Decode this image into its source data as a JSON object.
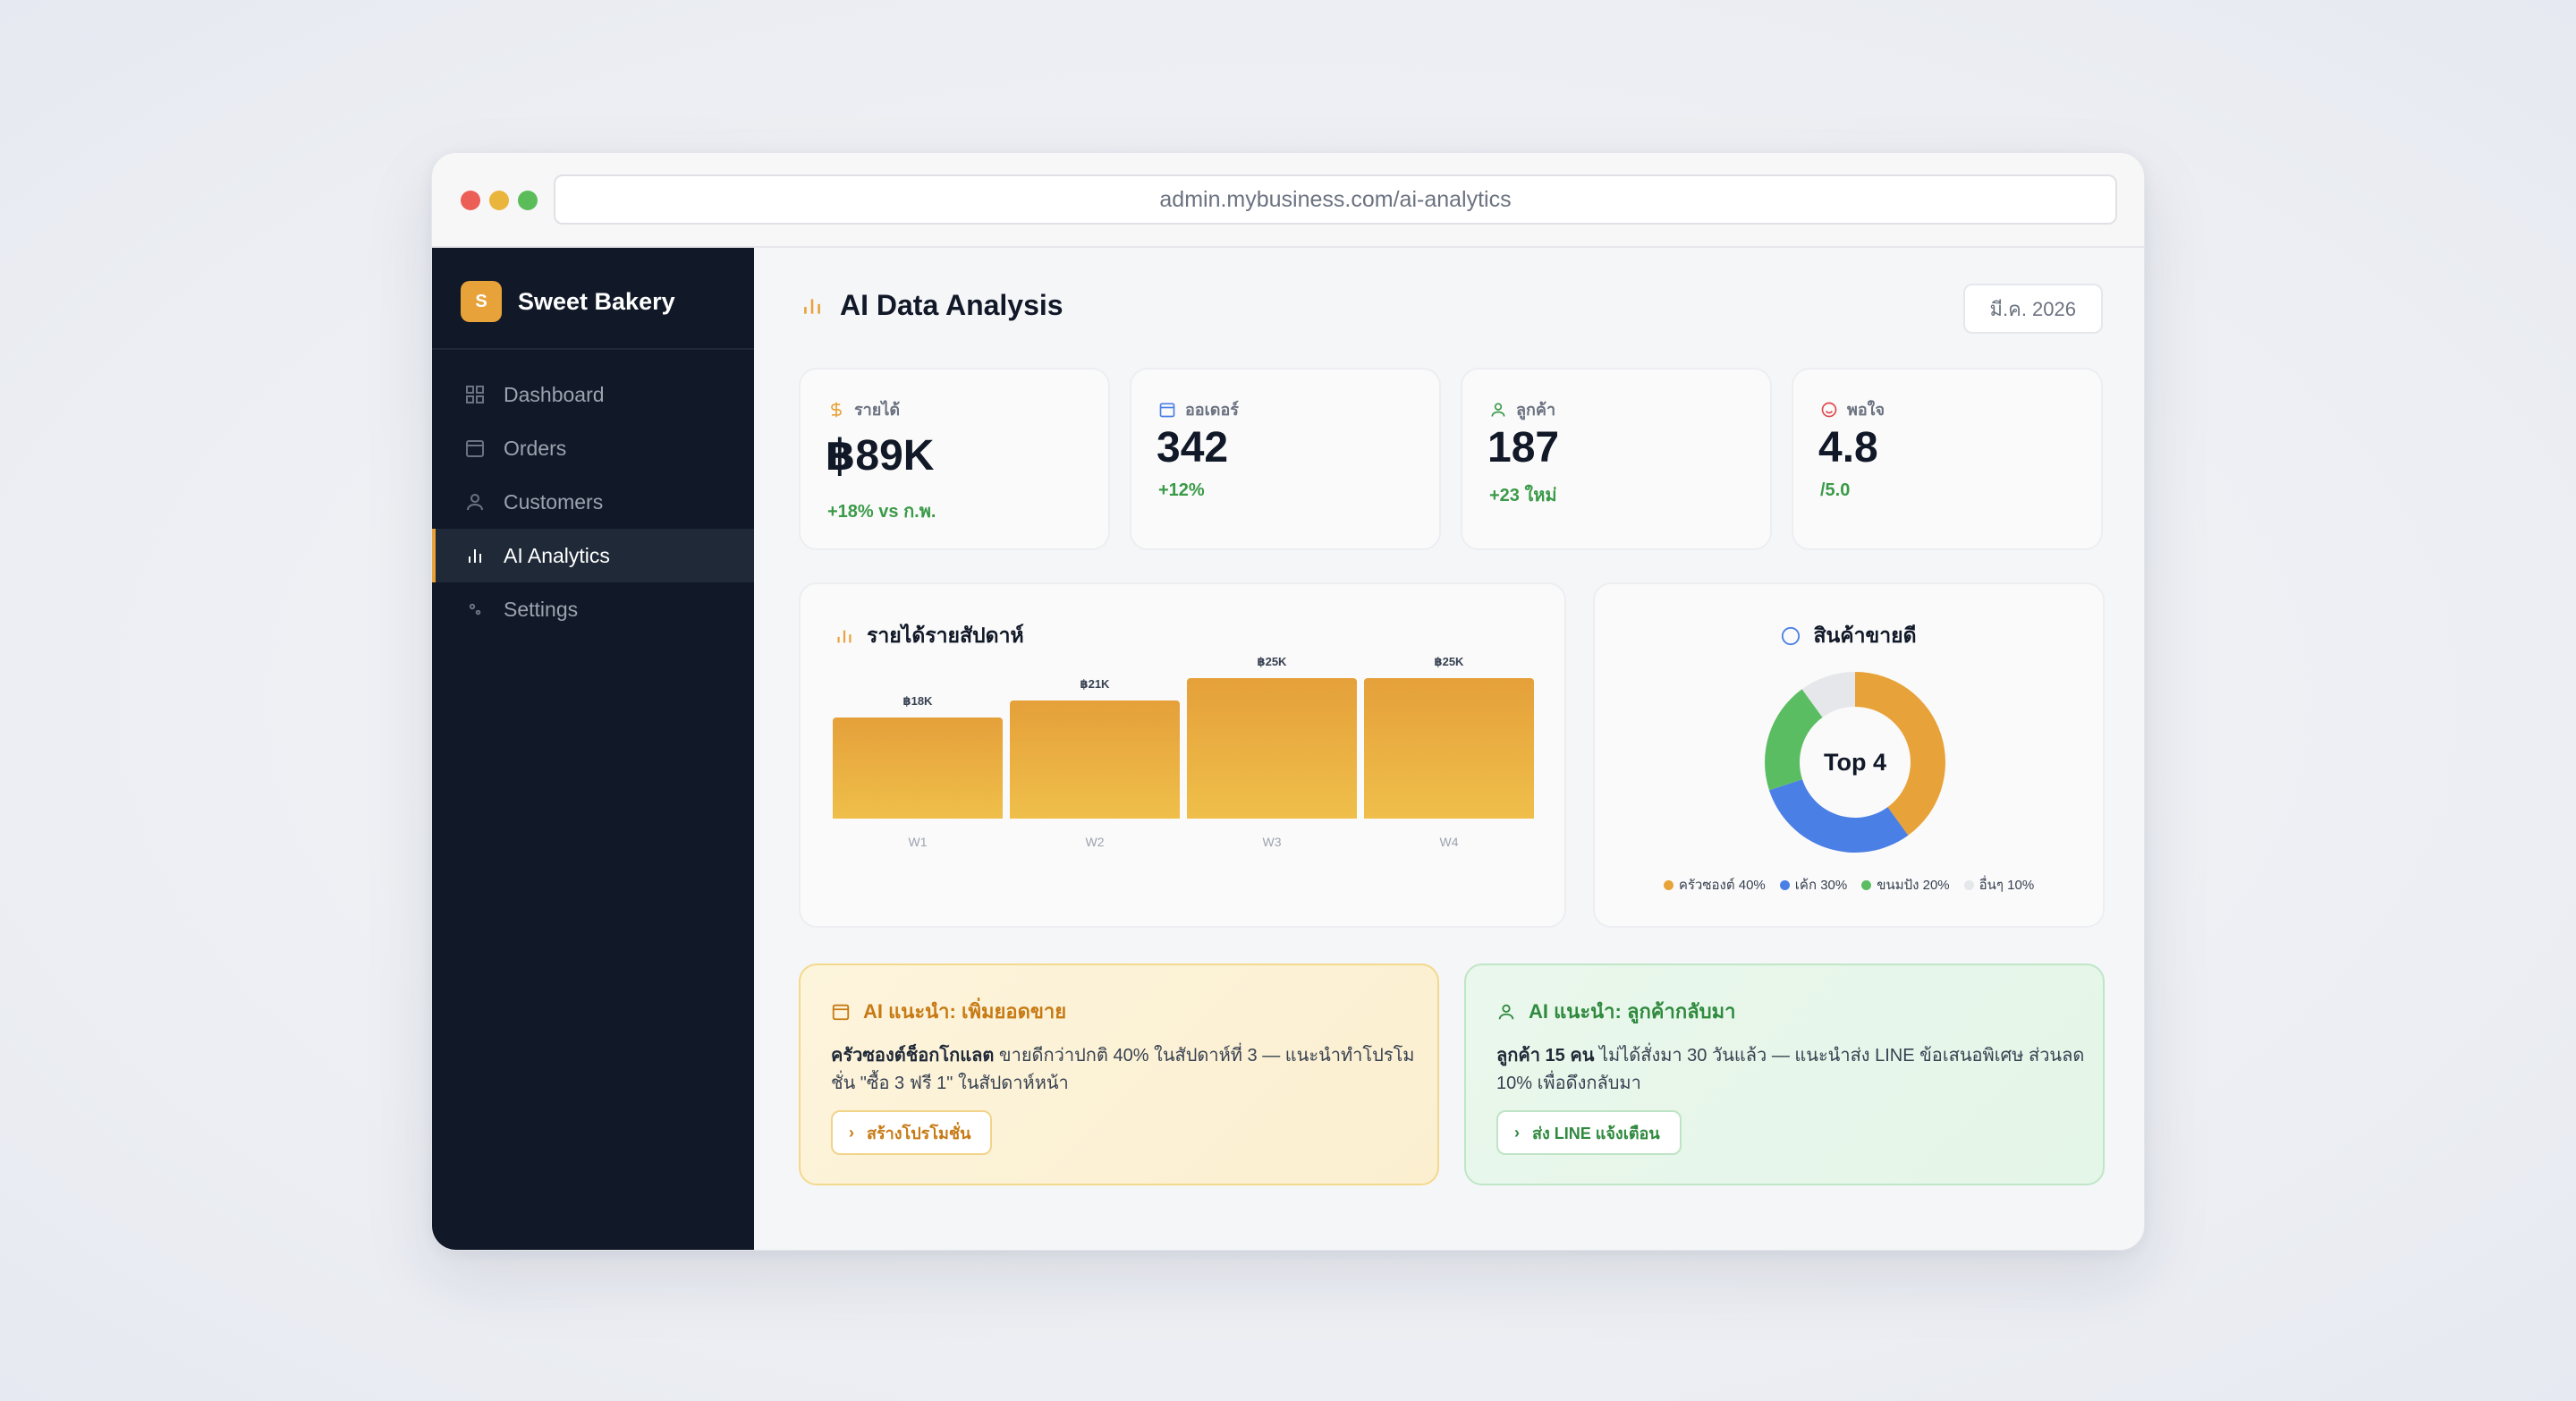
{
  "browser": {
    "url": "admin.mybusiness.com/ai-analytics"
  },
  "sidebar": {
    "brand_initial": "S",
    "brand_name": "Sweet Bakery",
    "items": [
      {
        "label": "Dashboard",
        "icon": "grid-icon",
        "active": false
      },
      {
        "label": "Orders",
        "icon": "calendar-icon",
        "active": false
      },
      {
        "label": "Customers",
        "icon": "user-icon",
        "active": false
      },
      {
        "label": "AI Analytics",
        "icon": "bar-chart-icon",
        "active": true
      },
      {
        "label": "Settings",
        "icon": "gear-icon",
        "active": false
      }
    ]
  },
  "header": {
    "title": "AI Data Analysis",
    "date": "มี.ค. 2026"
  },
  "stats": [
    {
      "label": "รายได้",
      "icon": "dollar-icon",
      "value": "฿89K",
      "sub": "+18% vs ก.พ."
    },
    {
      "label": "ออเดอร์",
      "icon": "calendar-icon",
      "value": "342",
      "sub": "+12%"
    },
    {
      "label": "ลูกค้า",
      "icon": "user-icon",
      "value": "187",
      "sub": "+23 ใหม่"
    },
    {
      "label": "พอใจ",
      "icon": "smile-icon",
      "value": "4.8",
      "sub": "/5.0"
    }
  ],
  "revenue_panel": {
    "title": "รายได้รายสัปดาห์"
  },
  "donut_panel": {
    "title": "สินค้าขายดี",
    "center": "Top 4"
  },
  "chart_data": [
    {
      "type": "bar",
      "title": "รายได้รายสัปดาห์",
      "categories": [
        "W1",
        "W2",
        "W3",
        "W4"
      ],
      "values": [
        18,
        21,
        25,
        25
      ],
      "value_labels": [
        "฿18K",
        "฿21K",
        "฿25K",
        "฿25K"
      ],
      "ylim": [
        0,
        27
      ],
      "color": "#e8a23a"
    },
    {
      "type": "pie",
      "title": "สินค้าขายดี",
      "categories": [
        "ครัวซองต์ 40%",
        "เค้ก 30%",
        "ขนมปัง 20%",
        "อื่นๆ 10%"
      ],
      "values": [
        40,
        30,
        20,
        10
      ],
      "colors": [
        "#e8a23a",
        "#4a7fe5",
        "#5bbd62",
        "#e5e7eb"
      ],
      "legend": "bottom"
    }
  ],
  "tips": [
    {
      "title": "AI แนะนำ: เพิ่มยอดขาย",
      "body_bold": "ครัวซองต์ช็อกโกแลต",
      "body": " ขายดีกว่าปกติ 40% ในสัปดาห์ที่ 3 — แนะนำทำโปรโมชั่น \"ซื้อ 3 ฟรี 1\" ในสัปดาห์หน้า",
      "button": "สร้างโปรโมชั่น",
      "icon": "calendar-icon",
      "accent": "#c77a14"
    },
    {
      "title": "AI แนะนำ: ลูกค้ากลับมา",
      "body_bold": "ลูกค้า 15 คน",
      "body": " ไม่ได้สั่งมา 30 วันแล้ว — แนะนำส่ง LINE ข้อเสนอพิเศษ ส่วนลด 10% เพื่อดึงกลับมา",
      "button": "ส่ง LINE แจ้งเตือน",
      "icon": "user-icon",
      "accent": "#2f8a3e"
    }
  ]
}
